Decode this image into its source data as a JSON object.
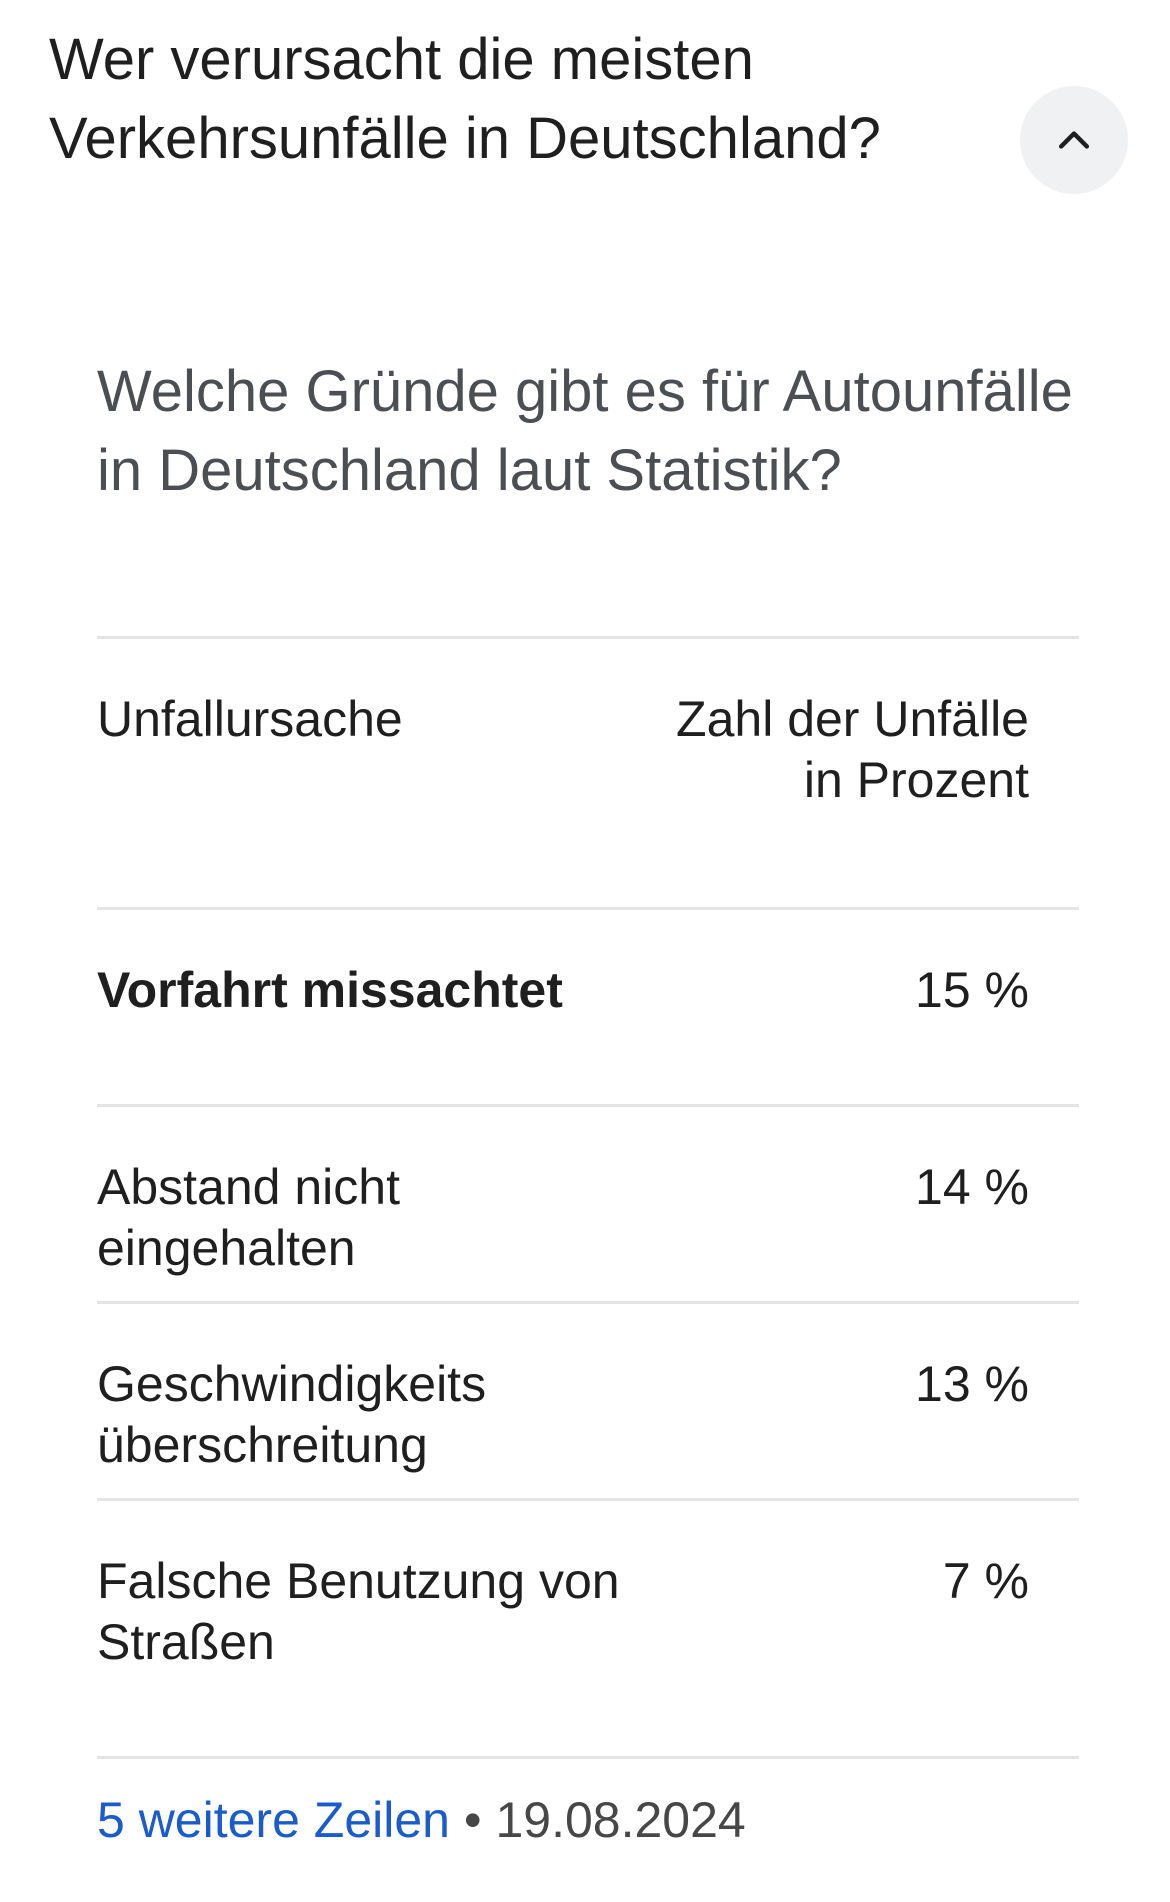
{
  "question": "Wer verursacht die meisten Verkehrsunfälle in Deutschland?",
  "collapse_icon": "chevron-up-icon",
  "answer": {
    "subheading": "Welche Gründe gibt es für Autounfälle in Deutschland laut Statistik?",
    "table": {
      "headers": [
        "Unfallursache",
        "Zahl der Unfälle in Prozent"
      ],
      "rows": [
        {
          "cause": "Vorfahrt missachtet",
          "value": "15 %"
        },
        {
          "cause": "Abstand nicht eingehalten",
          "value": "14 %"
        },
        {
          "cause": "Geschwindigkeits überschreitung",
          "value": "13 %"
        },
        {
          "cause": "Falsche Benutzung von Straßen",
          "value": "7 %"
        }
      ]
    },
    "footer": {
      "more_rows_label": "5 weitere Zeilen",
      "separator": "•",
      "date": "19.08.2024"
    }
  },
  "colors": {
    "link": "#1a5ccd",
    "button_bg": "#f0f1f3",
    "rule": "#e3e4e6",
    "subheading": "#4b4f54"
  }
}
